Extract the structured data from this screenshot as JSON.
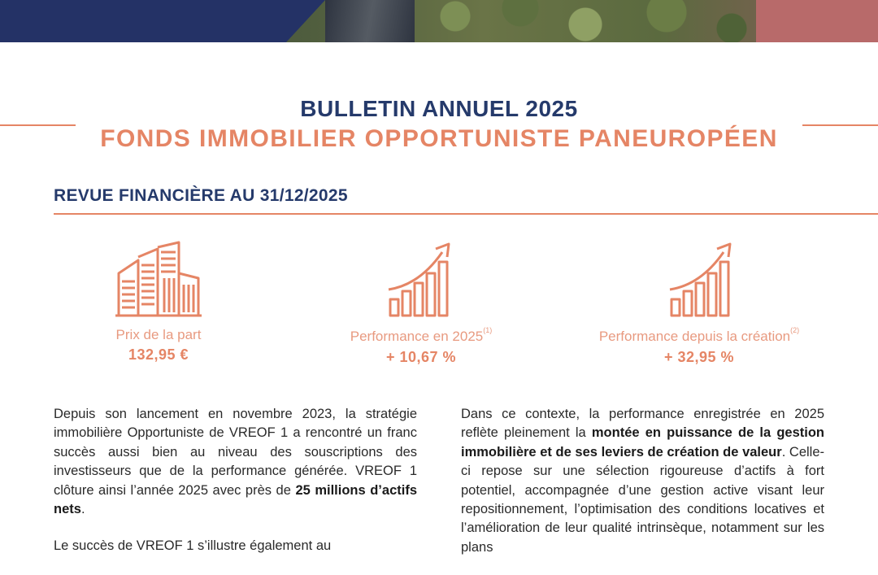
{
  "header": {
    "title": "BULLETIN ANNUEL 2025",
    "subtitle": "FONDS IMMOBILIER OPPORTUNISTE PANEUROPÉEN"
  },
  "section": {
    "title": "REVUE FINANCIÈRE AU 31/12/2025"
  },
  "kpis": [
    {
      "icon": "buildings-icon",
      "label": "Prix de la part",
      "note": "",
      "value": "132,95 €"
    },
    {
      "icon": "growth-chart-icon",
      "label": "Performance en 2025",
      "note": "(1)",
      "value": "+ 10,67 %"
    },
    {
      "icon": "growth-chart-icon",
      "label": "Performance depuis la création",
      "note": "(2)",
      "value": "+ 32,95 %"
    }
  ],
  "body": {
    "left": {
      "p1_a": "Depuis son lancement en novembre 2023, la stratégie immobilière Opportuniste de VREOF 1 a rencontré un franc succès aussi bien au niveau des souscriptions des investisseurs que de la performance générée. VREOF 1 clôture ainsi l’année 2025 avec près de ",
      "p1_b": "25 millions d’actifs nets",
      "p1_c": ".",
      "p2": "Le succès de VREOF 1 s’illustre également au"
    },
    "right": {
      "p1_a": "Dans ce contexte, la performance enregistrée en 2025 reflète pleinement la ",
      "p1_b": "montée en puissance de la gestion immobilière et de ses leviers de création de valeur",
      "p1_c": ". Celle-ci repose sur une sélection rigoureuse d’actifs à fort potentiel, accompagnée d’une gestion active visant leur repositionnement, l’optimisation des conditions locatives et l’amélioration de leur qualité intrinsèque, notamment sur les plans"
    }
  },
  "colors": {
    "navy": "#253a6b",
    "accent": "#e58565"
  }
}
